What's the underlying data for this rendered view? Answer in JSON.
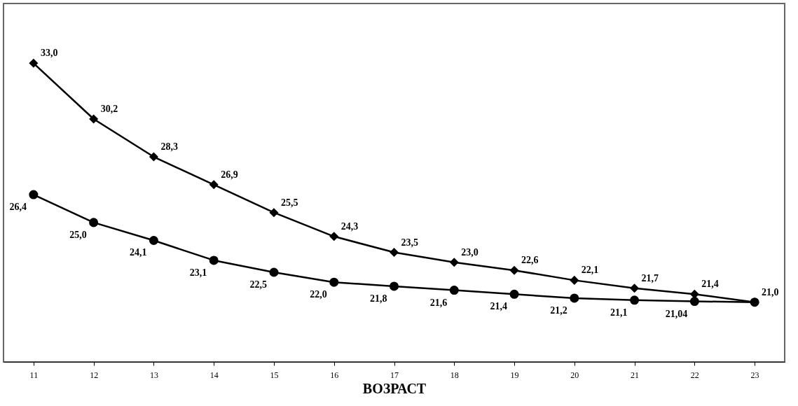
{
  "chart_data": {
    "type": "line",
    "xlabel": "ВОЗРАСТ",
    "categories": [
      "11",
      "12",
      "13",
      "14",
      "15",
      "16",
      "17",
      "18",
      "19",
      "20",
      "21",
      "22",
      "23"
    ],
    "series": [
      {
        "color": "#000000",
        "marker": "diamond",
        "values": [
          33.0,
          30.2,
          28.3,
          26.9,
          25.5,
          24.3,
          23.5,
          23.0,
          22.6,
          22.1,
          21.7,
          21.4,
          21.0
        ],
        "value_labels": [
          "33,0",
          "30,2",
          "28,3",
          "26,9",
          "25,5",
          "24,3",
          "23,5",
          "23,0",
          "22,6",
          "22,1",
          "21,7",
          "21,4",
          "21,0"
        ]
      },
      {
        "color": "#000000",
        "marker": "circle",
        "values": [
          26.4,
          25.0,
          24.1,
          23.1,
          22.5,
          22.0,
          21.8,
          21.6,
          21.4,
          21.2,
          21.1,
          21.04,
          21.0
        ],
        "value_labels": [
          "26,4",
          "25,0",
          "24,1",
          "23,1",
          "22,5",
          "22,0",
          "21,8",
          "21,6",
          "21,4",
          "21,2",
          "21,1",
          "21,04",
          null
        ]
      }
    ],
    "grid": false,
    "line_style": "solid"
  }
}
